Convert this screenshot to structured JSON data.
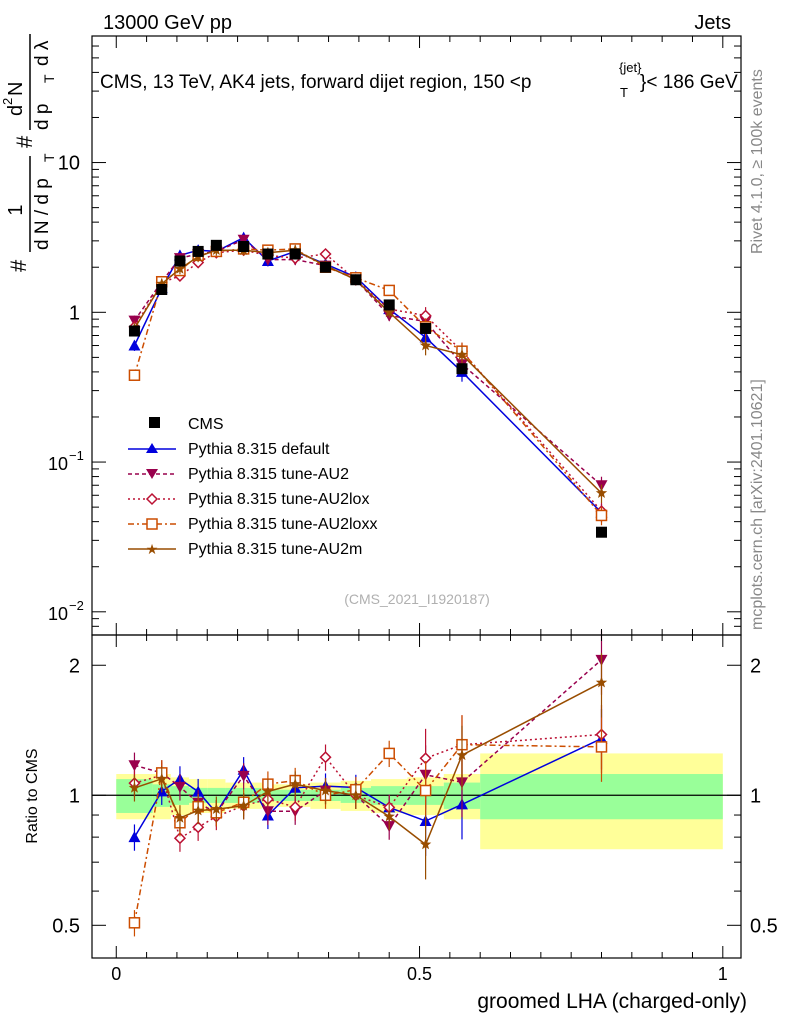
{
  "header": {
    "energy_label": "13000 GeV pp",
    "category_label": "Jets",
    "plot_title_main": "CMS, 13 TeV, AK4 jets, forward dijet region, 150 <p",
    "plot_title_sup": "{jet}",
    "plot_title_sub": "T",
    "plot_title_end": "}< 186 GeV",
    "reference_tag": "(CMS_2021_I1920187)",
    "side_label_rivet": "Rivet 4.1.0, ≥ 100k events",
    "side_label_site": "mcplots.cern.ch [arXiv:2401.10621]"
  },
  "axes": {
    "xlabel": "groomed LHA (charged-only)",
    "ratio_ylabel": "Ratio to CMS",
    "main_ylabel_pre": "#",
    "main_ylabel_parts": [
      "1",
      "d N / d p",
      "T",
      "#",
      "d",
      "2",
      "N",
      "d p",
      "T",
      "d λ"
    ],
    "x_ticks": [
      {
        "value": 0,
        "label": "0"
      },
      {
        "value": 0.5,
        "label": "0.5"
      },
      {
        "value": 1,
        "label": "1"
      }
    ],
    "main_y_ticks": [
      {
        "value": 0.01,
        "label": "10",
        "exp": "−2"
      },
      {
        "value": 0.1,
        "label": "10",
        "exp": "−1"
      },
      {
        "value": 1,
        "label": "1",
        "exp": ""
      },
      {
        "value": 10,
        "label": "10",
        "exp": ""
      }
    ],
    "ratio_y_ticks": [
      {
        "value": 0.5,
        "label": "0.5"
      },
      {
        "value": 1,
        "label": "1"
      },
      {
        "value": 2,
        "label": "2"
      }
    ]
  },
  "legend": {
    "items": [
      {
        "key": "cms",
        "label": "CMS"
      },
      {
        "key": "default",
        "label": "Pythia 8.315 default"
      },
      {
        "key": "au2",
        "label": "Pythia 8.315 tune-AU2"
      },
      {
        "key": "au2lox",
        "label": "Pythia 8.315 tune-AU2lox"
      },
      {
        "key": "au2loxx",
        "label": "Pythia 8.315 tune-AU2loxx"
      },
      {
        "key": "au2m",
        "label": "Pythia 8.315 tune-AU2m"
      }
    ]
  },
  "chart_data": {
    "type": "line",
    "title": "CMS, 13 TeV, AK4 jets, forward dijet region, 150 < pT{jet} < 186 GeV",
    "xlabel": "groomed LHA (charged-only)",
    "ylabel": "(1/(dN/dpT)) d2N/(dpT dlambda)",
    "xlim": [
      -0.04,
      1.03
    ],
    "ylim": [
      0.007,
      70
    ],
    "yscale": "log",
    "ratio_ylim": [
      0.42,
      2.35
    ],
    "ratio_ylabel": "Ratio to CMS",
    "x": [
      0.03,
      0.075,
      0.105,
      0.135,
      0.165,
      0.21,
      0.25,
      0.295,
      0.345,
      0.395,
      0.45,
      0.51,
      0.57,
      0.8
    ],
    "bin_edges": [
      0.0,
      0.06,
      0.09,
      0.12,
      0.15,
      0.18,
      0.24,
      0.27,
      0.32,
      0.37,
      0.42,
      0.48,
      0.54,
      0.6,
      1.0
    ],
    "data": {
      "name": "CMS",
      "values": [
        0.75,
        1.42,
        2.2,
        2.55,
        2.8,
        2.75,
        2.45,
        2.45,
        2.0,
        1.65,
        1.12,
        0.78,
        0.42,
        0.034
      ],
      "ratio_band_stat": [
        0.09,
        0.06,
        0.05,
        0.04,
        0.04,
        0.04,
        0.03,
        0.03,
        0.03,
        0.04,
        0.05,
        0.05,
        0.07,
        0.12
      ],
      "ratio_band_total": [
        0.12,
        0.12,
        0.1,
        0.09,
        0.09,
        0.07,
        0.06,
        0.06,
        0.07,
        0.08,
        0.09,
        0.1,
        0.12,
        0.25
      ]
    },
    "series": [
      {
        "name": "Pythia 8.315 default",
        "color": "#0000dd",
        "marker": "triangle-up",
        "values": [
          0.6,
          1.45,
          2.4,
          2.6,
          2.55,
          3.15,
          2.2,
          2.55,
          2.1,
          1.72,
          1.05,
          0.68,
          0.4,
          0.046
        ]
      },
      {
        "name": "Pythia 8.315 tune-AU2",
        "color": "#99004d",
        "marker": "triangle-down",
        "values": [
          0.88,
          1.6,
          2.3,
          2.45,
          2.55,
          3.05,
          2.25,
          2.25,
          2.05,
          1.65,
          0.95,
          0.87,
          0.45,
          0.07
        ]
      },
      {
        "name": "Pythia 8.315 tune-AU2lox",
        "color": "#bb1133",
        "marker": "diamond",
        "values": [
          0.8,
          1.58,
          1.75,
          2.15,
          2.5,
          2.6,
          2.4,
          2.3,
          2.45,
          1.65,
          1.05,
          0.95,
          0.55,
          0.047
        ]
      },
      {
        "name": "Pythia 8.315 tune-AU2loxx",
        "color": "#cc4d00",
        "marker": "square-open",
        "values": [
          0.38,
          1.6,
          1.9,
          2.4,
          2.55,
          2.65,
          2.6,
          2.65,
          2.0,
          1.7,
          1.4,
          0.8,
          0.55,
          0.044
        ]
      },
      {
        "name": "Pythia 8.315 tune-AU2m",
        "color": "#994d00",
        "marker": "star",
        "values": [
          0.78,
          1.55,
          1.95,
          2.35,
          2.6,
          2.6,
          2.5,
          2.6,
          2.05,
          1.65,
          1.0,
          0.6,
          0.52,
          0.062
        ]
      }
    ]
  }
}
